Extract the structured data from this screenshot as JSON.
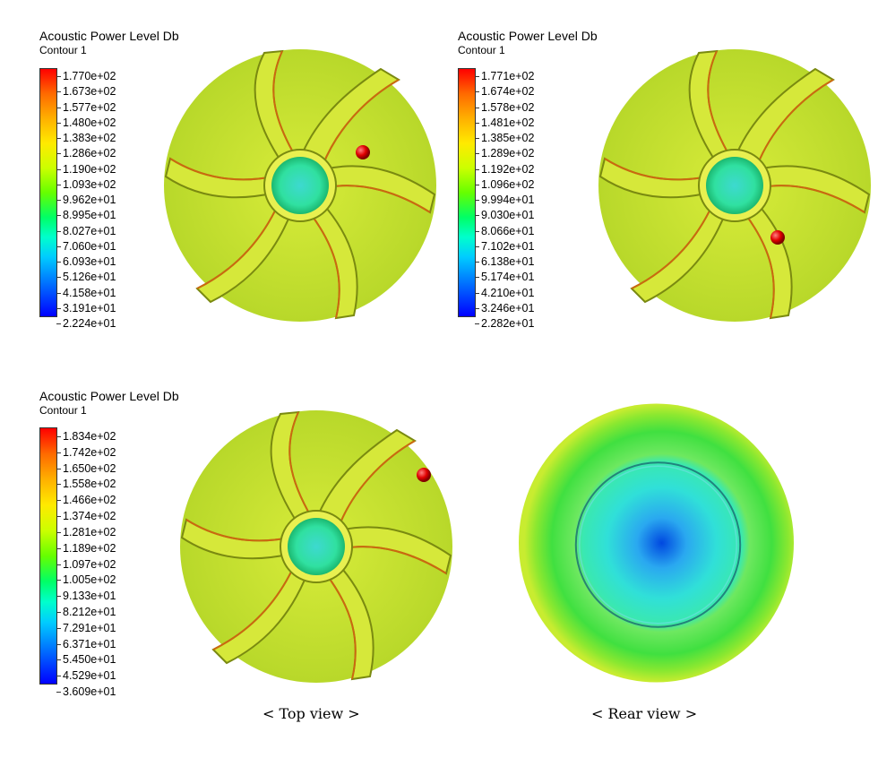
{
  "legends": [
    {
      "title": "Acoustic Power Level Db",
      "subtitle": "Contour 1",
      "ticks": [
        "1.770e+02",
        "1.673e+02",
        "1.577e+02",
        "1.480e+02",
        "1.383e+02",
        "1.286e+02",
        "1.190e+02",
        "1.093e+02",
        "9.962e+01",
        "8.995e+01",
        "8.027e+01",
        "7.060e+01",
        "6.093e+01",
        "5.126e+01",
        "4.158e+01",
        "3.191e+01",
        "2.224e+01"
      ]
    },
    {
      "title": "Acoustic Power Level Db",
      "subtitle": "Contour 1",
      "ticks": [
        "1.771e+02",
        "1.674e+02",
        "1.578e+02",
        "1.481e+02",
        "1.385e+02",
        "1.289e+02",
        "1.192e+02",
        "1.096e+02",
        "9.994e+01",
        "9.030e+01",
        "8.066e+01",
        "7.102e+01",
        "6.138e+01",
        "5.174e+01",
        "4.210e+01",
        "3.246e+01",
        "2.282e+01"
      ]
    },
    {
      "title": "Acoustic Power Level Db",
      "subtitle": "Contour 1",
      "ticks": [
        "1.834e+02",
        "1.742e+02",
        "1.650e+02",
        "1.558e+02",
        "1.466e+02",
        "1.374e+02",
        "1.281e+02",
        "1.189e+02",
        "1.097e+02",
        "1.005e+02",
        "9.133e+01",
        "8.212e+01",
        "7.291e+01",
        "6.371e+01",
        "5.450e+01",
        "4.529e+01",
        "3.609e+01"
      ]
    }
  ],
  "captions": {
    "top": "< Top view >",
    "rear": "< Rear view >"
  },
  "colors": {
    "impeller": "#c8e62a",
    "hub": "#2fe0b0",
    "marker": "#d40000",
    "rear_outer": "#7fe02a",
    "rear_center": "#0050e0"
  }
}
